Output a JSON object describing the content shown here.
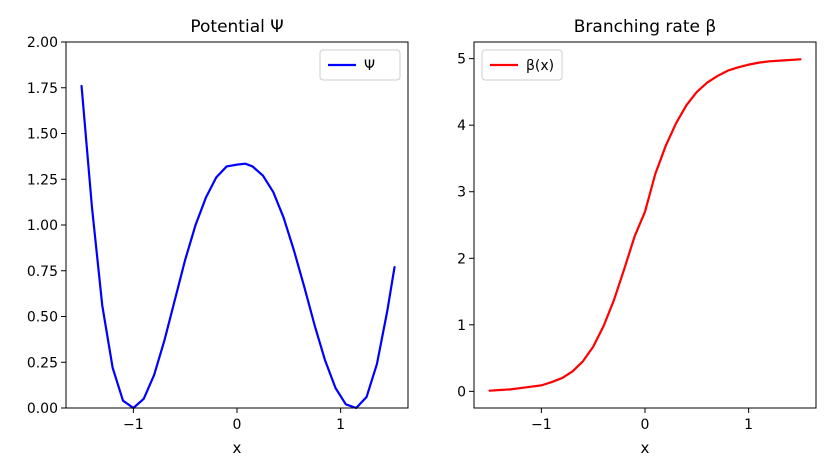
{
  "chart_data": [
    {
      "type": "line",
      "title": "Potential Ψ",
      "xlabel": "x",
      "ylabel": "",
      "xlim": [
        -1.65,
        1.65
      ],
      "ylim": [
        0,
        2.0
      ],
      "xticks": [
        -1,
        0,
        1
      ],
      "xtick_labels": [
        "−1",
        "0",
        "1"
      ],
      "yticks": [
        0,
        0.25,
        0.5,
        0.75,
        1.0,
        1.25,
        1.5,
        1.75,
        2.0
      ],
      "ytick_labels": [
        "0.00",
        "0.25",
        "0.50",
        "0.75",
        "1.00",
        "1.25",
        "1.50",
        "1.75",
        "2.00"
      ],
      "legend_position": "upper right",
      "grid": false,
      "series": [
        {
          "name": "Ψ",
          "color": "#0000ff",
          "x": [
            -1.5,
            -1.4,
            -1.3,
            -1.2,
            -1.1,
            -1.0,
            -0.9,
            -0.8,
            -0.7,
            -0.6,
            -0.5,
            -0.4,
            -0.3,
            -0.2,
            -0.1,
            0.0,
            0.08,
            0.15,
            0.25,
            0.35,
            0.45,
            0.55,
            0.65,
            0.75,
            0.85,
            0.95,
            1.05,
            1.15,
            1.25,
            1.35,
            1.45,
            1.52
          ],
          "y": [
            1.76,
            1.1,
            0.56,
            0.22,
            0.04,
            0.0,
            0.05,
            0.18,
            0.37,
            0.59,
            0.81,
            1.0,
            1.15,
            1.26,
            1.32,
            1.33,
            1.335,
            1.32,
            1.27,
            1.18,
            1.04,
            0.86,
            0.66,
            0.45,
            0.26,
            0.11,
            0.02,
            0.0,
            0.06,
            0.24,
            0.53,
            0.77
          ]
        }
      ]
    },
    {
      "type": "line",
      "title": "Branching rate β",
      "xlabel": "x",
      "ylabel": "",
      "xlim": [
        -1.65,
        1.65
      ],
      "ylim": [
        -0.25,
        5.25
      ],
      "xticks": [
        -1,
        0,
        1
      ],
      "xtick_labels": [
        "−1",
        "0",
        "1"
      ],
      "yticks": [
        0,
        1,
        2,
        3,
        4,
        5
      ],
      "ytick_labels": [
        "0",
        "1",
        "2",
        "3",
        "4",
        "5"
      ],
      "legend_position": "upper left",
      "grid": false,
      "series": [
        {
          "name": "β(x)",
          "color": "#ff0000",
          "x": [
            -1.5,
            -1.4,
            -1.3,
            -1.2,
            -1.1,
            -1.0,
            -0.9,
            -0.8,
            -0.7,
            -0.6,
            -0.5,
            -0.4,
            -0.3,
            -0.2,
            -0.1,
            0.0,
            0.1,
            0.2,
            0.3,
            0.4,
            0.5,
            0.6,
            0.7,
            0.8,
            0.9,
            1.0,
            1.1,
            1.2,
            1.3,
            1.4,
            1.5
          ],
          "y": [
            0.01,
            0.02,
            0.03,
            0.05,
            0.07,
            0.09,
            0.14,
            0.2,
            0.3,
            0.45,
            0.67,
            0.98,
            1.37,
            1.84,
            2.33,
            2.7,
            3.27,
            3.69,
            4.03,
            4.3,
            4.5,
            4.64,
            4.74,
            4.82,
            4.87,
            4.91,
            4.94,
            4.96,
            4.97,
            4.98,
            4.99
          ]
        }
      ]
    }
  ]
}
